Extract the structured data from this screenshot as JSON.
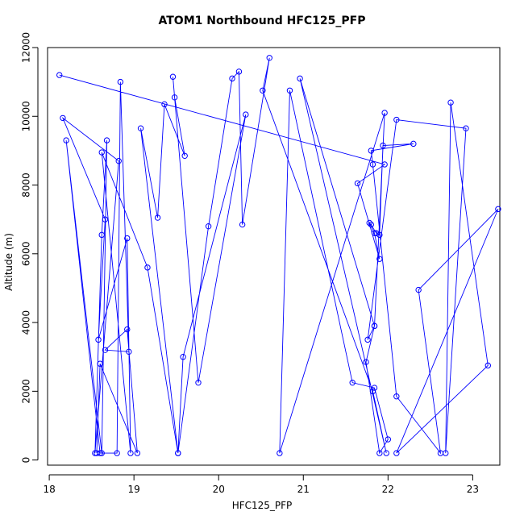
{
  "chart_data": {
    "type": "line",
    "title": "ATOM1 Northbound HFC125_PFP",
    "xlabel": "HFC125_PFP",
    "ylabel": "Altitude (m)",
    "xlim": [
      17.98,
      23.32
    ],
    "ylim": [
      -150,
      12000
    ],
    "xticks": [
      18,
      19,
      20,
      21,
      22,
      23
    ],
    "yticks": [
      0,
      2000,
      4000,
      6000,
      8000,
      10000,
      12000
    ],
    "grid": false,
    "legend": "none",
    "series_color": "#0000FF",
    "marker": "open-circle",
    "series": [
      {
        "x": [
          18.12,
          21.96,
          21.64,
          21.9,
          21.84,
          21.78,
          21.8,
          21.86,
          21.9,
          21.94,
          22.3,
          21.8,
          21.82,
          22.1,
          22.62,
          22.36,
          23.3,
          22.1,
          23.18,
          22.74,
          22.68,
          22.92,
          22.1,
          21.76,
          21.84,
          21.74,
          21.9,
          22.0,
          21.84,
          21.58,
          20.84,
          20.72,
          21.96,
          21.84,
          20.96,
          21.98,
          21.82,
          20.52,
          20.6,
          20.28,
          20.24,
          20.16,
          19.88,
          19.52,
          19.58,
          20.32,
          19.76,
          19.46,
          19.48,
          19.6,
          19.36,
          19.28,
          19.08,
          19.52,
          19.16,
          18.62,
          18.96,
          18.92,
          18.58,
          18.66,
          18.16,
          18.82,
          18.54,
          18.62,
          18.68,
          18.62,
          18.2,
          18.6,
          18.8,
          18.84,
          18.94,
          18.66,
          18.92,
          19.04,
          18.6,
          18.56
        ],
        "y": [
          11200,
          8600,
          8050,
          5850,
          6600,
          6900,
          6850,
          6600,
          6550,
          9150,
          9200,
          9000,
          8600,
          1850,
          200,
          4950,
          7300,
          200,
          2750,
          10400,
          200,
          9650,
          9900,
          3500,
          3900,
          2850,
          200,
          600,
          2100,
          2250,
          10750,
          200,
          10100,
          3900,
          11100,
          200,
          2000,
          10750,
          11700,
          6850,
          11300,
          11100,
          6800,
          200,
          3000,
          10050,
          2250,
          11150,
          10550,
          8850,
          10350,
          7050,
          9650,
          200,
          5600,
          8950,
          200,
          6450,
          3500,
          7000,
          9950,
          8700,
          200,
          6550,
          9300,
          200,
          9300,
          200,
          200,
          11000,
          3150,
          3200,
          3800,
          200,
          2800,
          200
        ]
      }
    ]
  }
}
